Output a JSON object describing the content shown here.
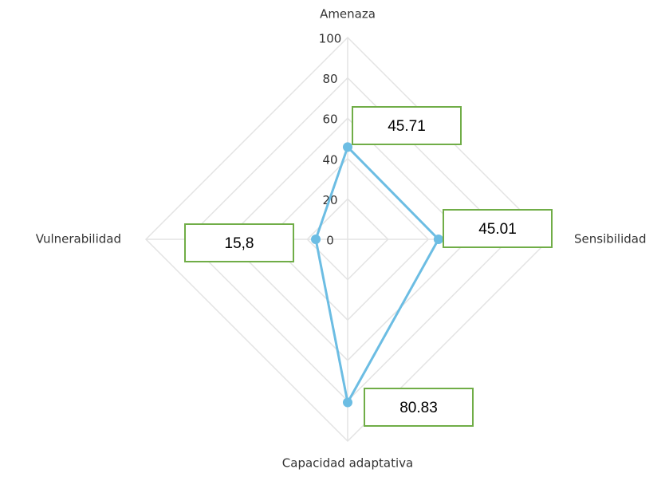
{
  "chart_data": {
    "type": "radar",
    "categories": [
      "Amenaza",
      "Sensibilidad",
      "Capacidad adaptativa",
      "Vulnerabilidad"
    ],
    "values": [
      45.71,
      45.01,
      80.83,
      15.8
    ],
    "value_labels": [
      "45.71",
      "45.01",
      "80.83",
      "15,8"
    ],
    "color": "#6cbde3",
    "ylim": [
      0,
      100
    ],
    "yticks": [
      0,
      20,
      40,
      60,
      80,
      100
    ],
    "grid": true
  }
}
